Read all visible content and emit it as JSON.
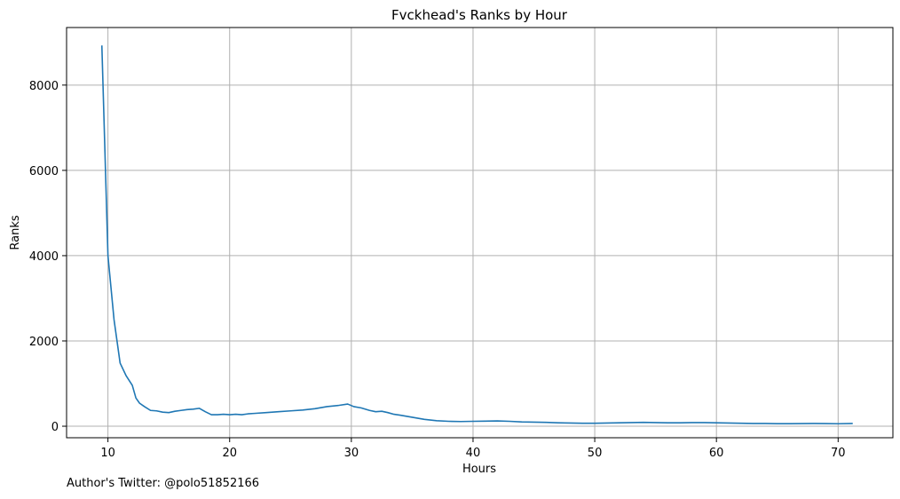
{
  "chart_data": {
    "type": "line",
    "title": "Fvckhead's Ranks by Hour",
    "xlabel": "Hours",
    "ylabel": "Ranks",
    "xlim": [
      6.6,
      74.5
    ],
    "ylim": [
      -270,
      9350
    ],
    "xticks": [
      10,
      20,
      30,
      40,
      50,
      60,
      70
    ],
    "yticks": [
      0,
      2000,
      4000,
      6000,
      8000
    ],
    "grid": true,
    "line_color": "#1f77b4",
    "series": [
      {
        "x": [
          9.5,
          10.0,
          10.5,
          11.0,
          11.5,
          12.0,
          12.3,
          12.6,
          13.0,
          13.5,
          14.0,
          14.5,
          15.0,
          15.5,
          16.0,
          16.5,
          17.0,
          17.5,
          18.0,
          18.5,
          19.0,
          19.5,
          20.0,
          20.5,
          21.0,
          21.5,
          22.0,
          23.0,
          24.0,
          25.0,
          26.0,
          27.0,
          28.0,
          29.0,
          29.7,
          30.2,
          30.8,
          31.5,
          32.0,
          32.5,
          33.0,
          33.5,
          34.0,
          35.0,
          36.0,
          37.0,
          38.0,
          39.0,
          40.0,
          41.0,
          42.0,
          43.0,
          44.0,
          45.0,
          46.0,
          47.0,
          48.0,
          49.0,
          50.0,
          51.0,
          52.0,
          53.0,
          54.0,
          55.0,
          56.0,
          57.0,
          58.0,
          59.0,
          60.0,
          61.0,
          62.0,
          63.0,
          64.0,
          65.0,
          66.0,
          67.0,
          68.0,
          69.0,
          70.0,
          71.2
        ],
        "values": [
          8930,
          4000,
          2500,
          1480,
          1180,
          960,
          660,
          540,
          460,
          370,
          360,
          330,
          320,
          350,
          370,
          390,
          400,
          420,
          340,
          270,
          270,
          280,
          270,
          280,
          270,
          290,
          300,
          320,
          340,
          360,
          380,
          410,
          460,
          490,
          520,
          460,
          430,
          370,
          340,
          350,
          320,
          280,
          260,
          210,
          160,
          130,
          115,
          110,
          115,
          120,
          125,
          115,
          100,
          95,
          90,
          80,
          75,
          70,
          70,
          75,
          80,
          85,
          90,
          85,
          80,
          80,
          85,
          85,
          80,
          75,
          70,
          65,
          65,
          60,
          60,
          62,
          65,
          62,
          58,
          65
        ]
      }
    ]
  },
  "footnote": "Author's Twitter: @polo51852166"
}
